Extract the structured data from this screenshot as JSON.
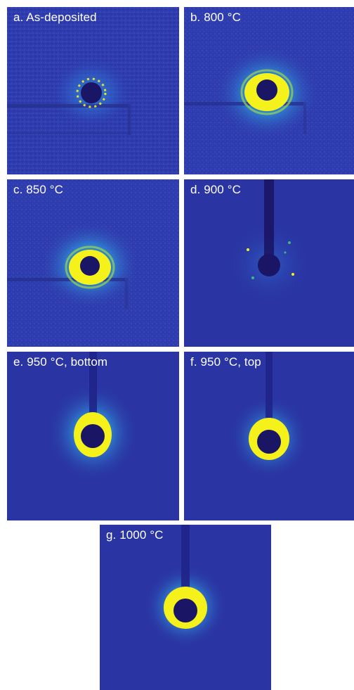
{
  "panels": [
    {
      "id": "a",
      "label": "a. As-deposited",
      "ring_intensity": "low",
      "beamstop_visible": false,
      "stripe_visible": true
    },
    {
      "id": "b",
      "label": "b. 800 °C",
      "ring_intensity": "high",
      "beamstop_visible": false,
      "stripe_visible": true
    },
    {
      "id": "c",
      "label": "c. 850 °C",
      "ring_intensity": "high",
      "beamstop_visible": false,
      "stripe_visible": true
    },
    {
      "id": "d",
      "label": "d. 900 °C",
      "ring_intensity": "low",
      "beamstop_visible": true,
      "stripe_visible": false
    },
    {
      "id": "e",
      "label": "e. 950 °C, bottom",
      "ring_intensity": "medium",
      "beamstop_visible": true,
      "stripe_visible": false
    },
    {
      "id": "f",
      "label": "f. 950 °C, top",
      "ring_intensity": "medium",
      "beamstop_visible": true,
      "stripe_visible": false
    },
    {
      "id": "g",
      "label": "g. 1000 °C",
      "ring_intensity": "high",
      "beamstop_visible": true,
      "stripe_visible": false
    }
  ],
  "colors": {
    "background_noisy": "#2f3cad",
    "background_clean": "#2a35a3",
    "beamstop": "#1a1565",
    "halo_cyan": "#2f8fd8",
    "halo_green": "#3cb88a",
    "ring_yellow": "#f4f21a",
    "label_text": "#ffffff"
  }
}
